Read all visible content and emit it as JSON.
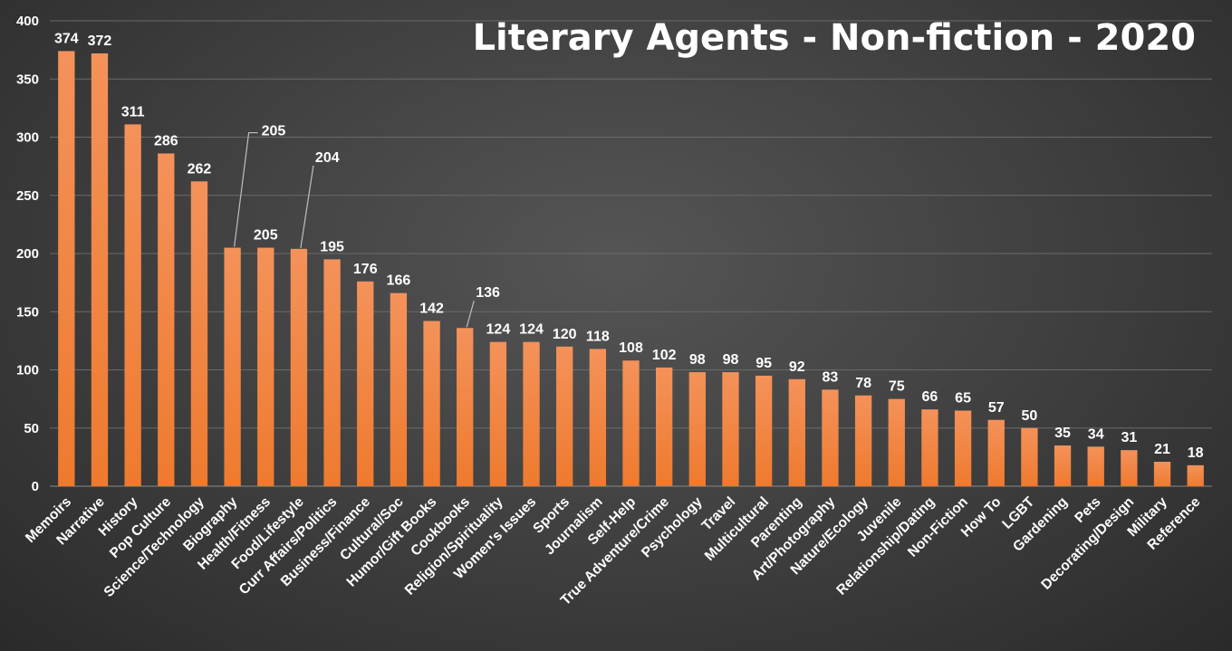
{
  "chart_data": {
    "type": "bar",
    "title": "Literary Agents - Non-fiction - 2020",
    "xlabel": "",
    "ylabel": "",
    "ylim": [
      0,
      400
    ],
    "yticks": [
      0,
      50,
      100,
      150,
      200,
      250,
      300,
      350,
      400
    ],
    "grid": true,
    "legend": "none",
    "categories": [
      "Memoirs",
      "Narrative",
      "History",
      "Pop Culture",
      "Science/Technology",
      "Biography",
      "Health/Fitness",
      "Food/Lifestyle",
      "Curr Affairs/Politics",
      "Business/Finance",
      "Cultural/Soc",
      "Humor/Gift Books",
      "Cookbooks",
      "Religion/Spirituality",
      "Women's Issues",
      "Sports",
      "Journalism",
      "Self-Help",
      "True Adventure/Crime",
      "Psychology",
      "Travel",
      "Multicultural",
      "Parenting",
      "Art/Photography",
      "Nature/Ecology",
      "Juvenile",
      "Relationship/Dating",
      "Non-Fiction",
      "How To",
      "LGBT",
      "Gardening",
      "Pets",
      "Decorating/Design",
      "Military",
      "Reference"
    ],
    "values": [
      374,
      372,
      311,
      286,
      262,
      205,
      205,
      204,
      195,
      176,
      166,
      142,
      136,
      124,
      124,
      120,
      118,
      108,
      102,
      98,
      98,
      95,
      92,
      83,
      78,
      75,
      66,
      65,
      57,
      50,
      35,
      34,
      31,
      21,
      18
    ],
    "leader_line_labels": [
      5,
      7,
      12
    ]
  },
  "colors": {
    "bar_top": "#f4925a",
    "bar_bottom": "#ee7a2e",
    "gridline": "#6a6a6a",
    "axis_line": "#8a8a8a",
    "text": "#ffffff",
    "leader": "#bfbfbf"
  }
}
